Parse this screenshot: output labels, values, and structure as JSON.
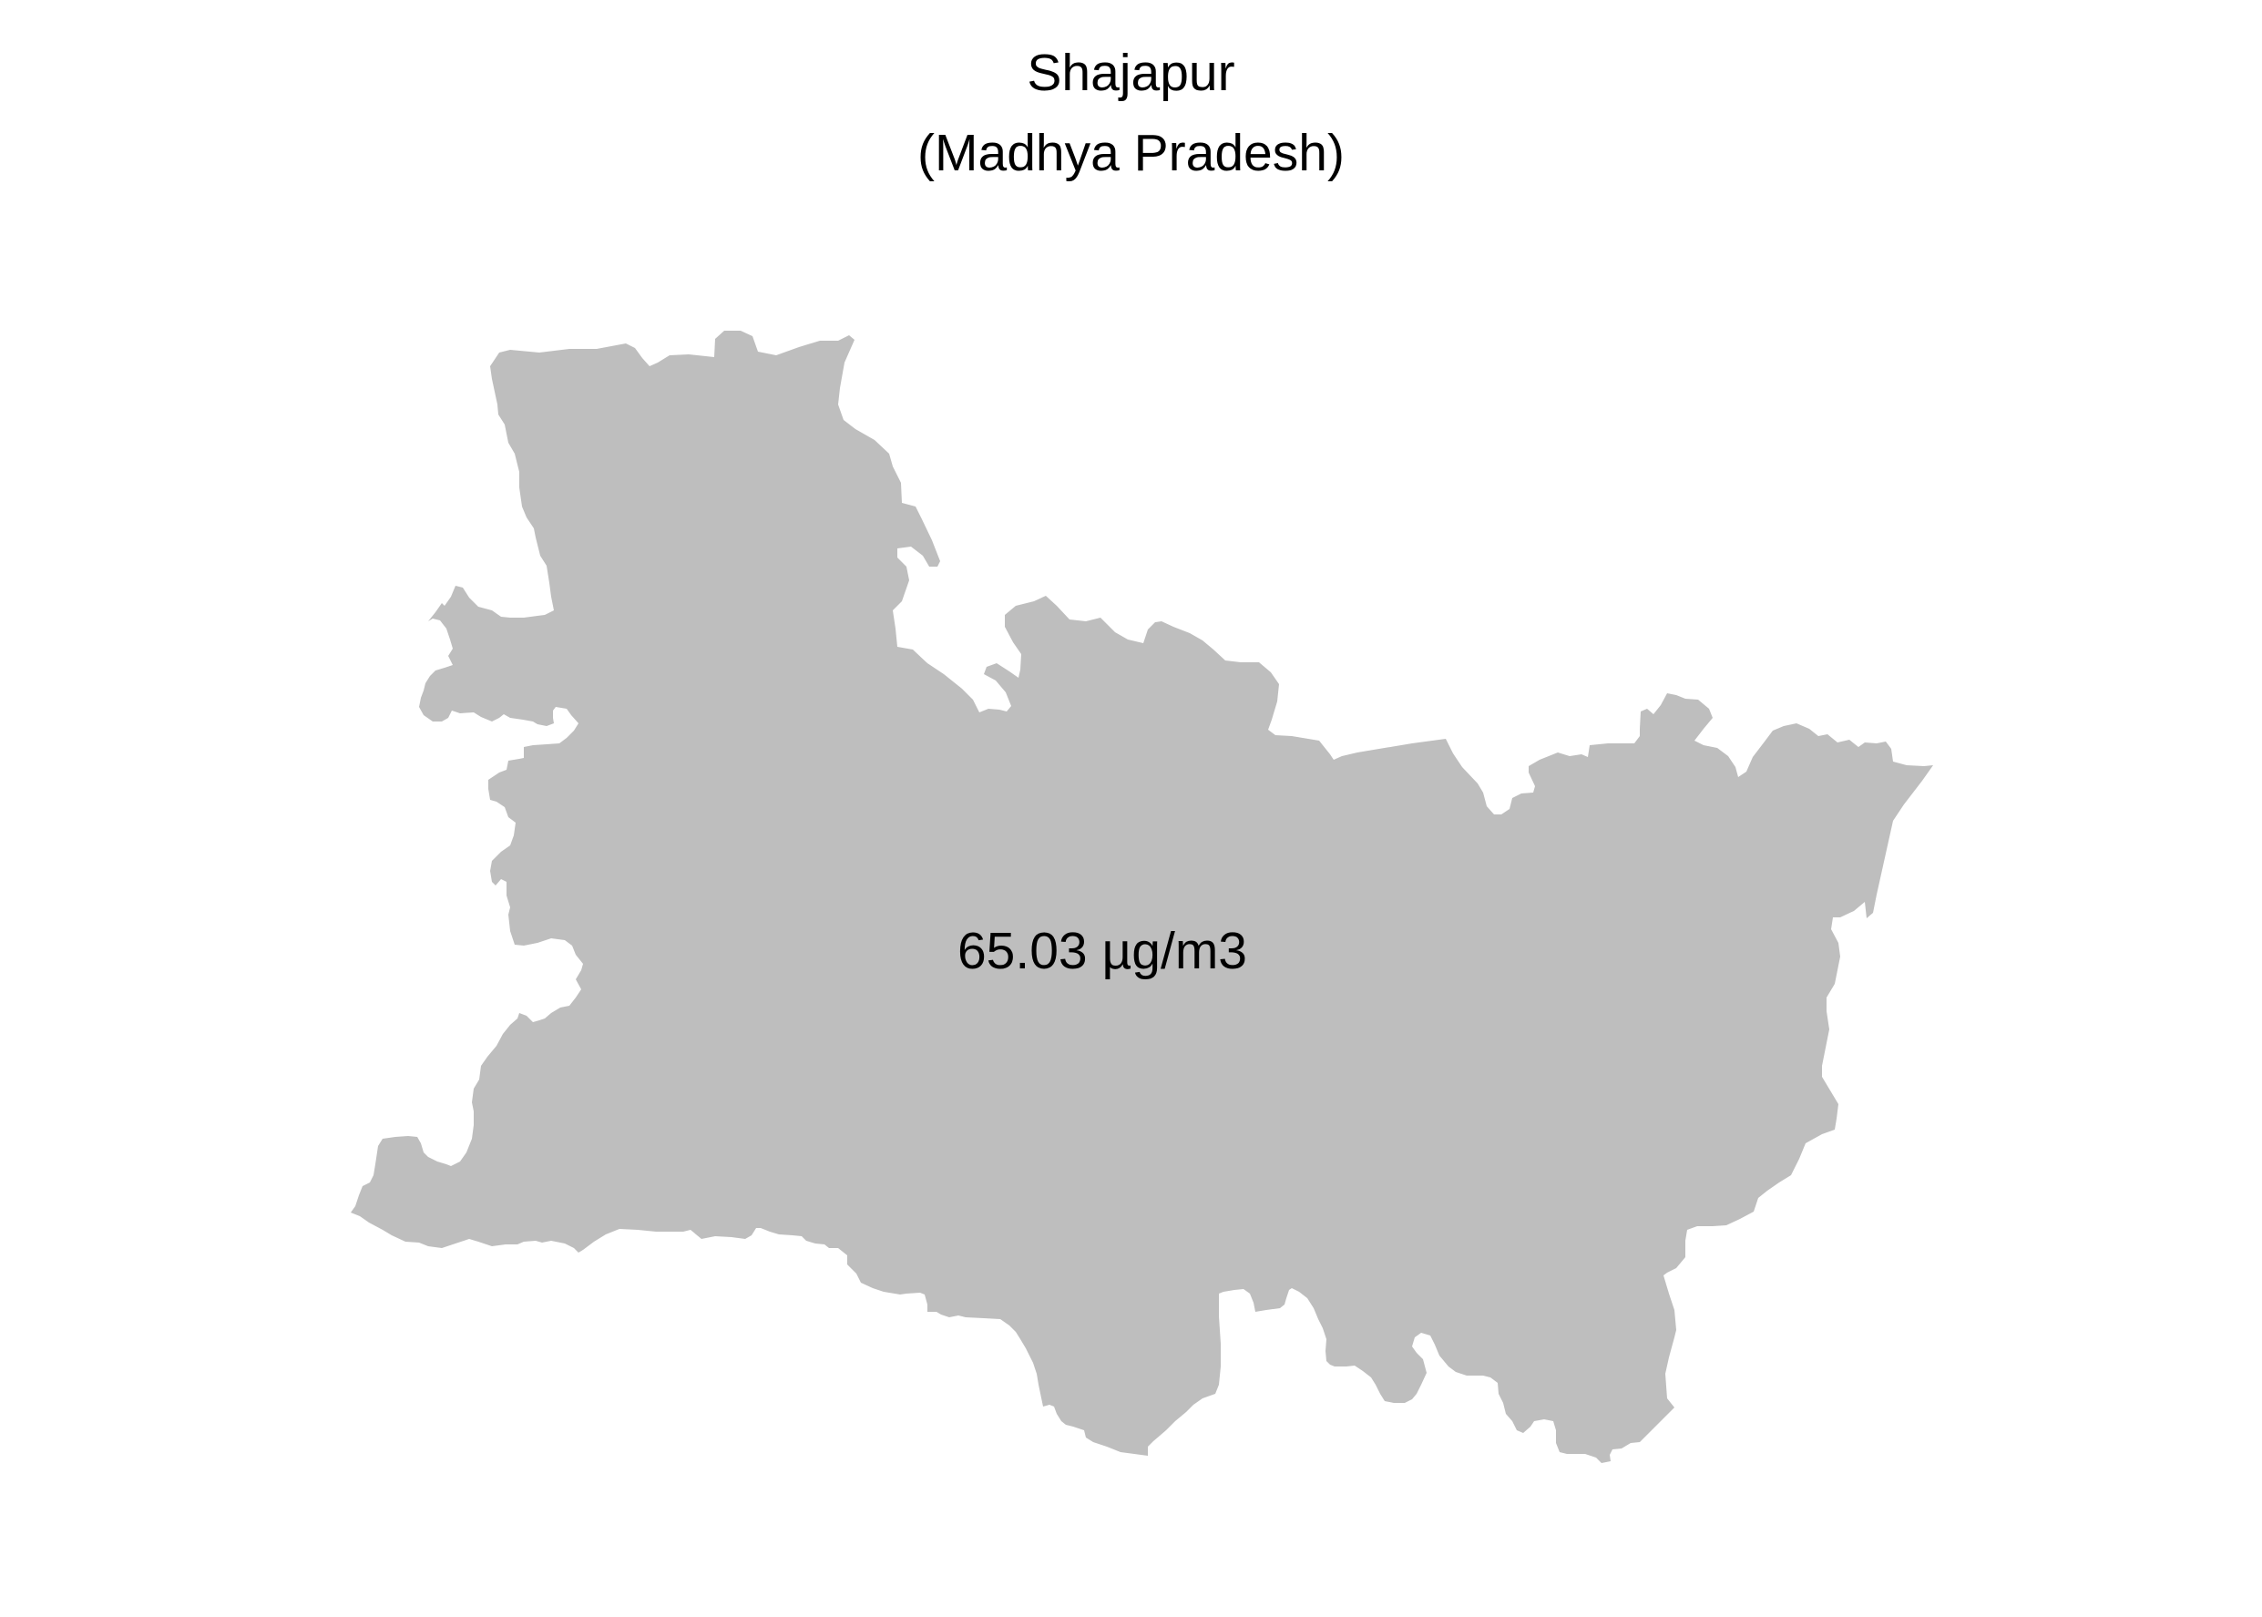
{
  "map": {
    "title_line_1": "Shajapur",
    "title_line_2": "(Madhya Pradesh)",
    "district": "Shajapur",
    "state": "Madhya Pradesh",
    "value_label": "65.03 µg/m3",
    "value": 65.03,
    "unit": "µg/m3",
    "fill_color": "#bebebe",
    "background_color": "#ffffff",
    "text_color": "#000000"
  }
}
